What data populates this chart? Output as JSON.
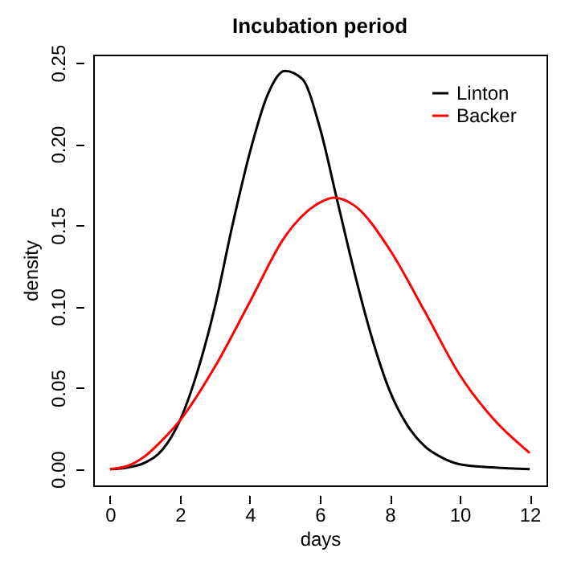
{
  "chart_data": {
    "type": "line",
    "title": "Incubation period",
    "xlabel": "days",
    "ylabel": "density",
    "xlim": [
      -0.48,
      12.48
    ],
    "ylim": [
      -0.01,
      0.255
    ],
    "xticks": [
      0,
      2,
      4,
      6,
      8,
      10,
      12
    ],
    "yticks": [
      {
        "value": 0,
        "label": "0.00"
      },
      0.05,
      {
        "value": 0.1,
        "label": "0.10"
      },
      0.15,
      {
        "value": 0.2,
        "label": "0.20"
      },
      0.25
    ],
    "grid": false,
    "legend": "top right",
    "line_style": "solid",
    "series": [
      {
        "name": "Linton",
        "color": "#000000",
        "x": [
          0,
          0.5,
          1,
          1.5,
          2,
          2.5,
          3,
          3.5,
          4,
          4.5,
          5,
          5.5,
          6,
          6.5,
          7,
          7.5,
          8,
          8.5,
          9,
          9.5,
          10,
          11,
          12
        ],
        "values": [
          0,
          0.001,
          0.004,
          0.012,
          0.03,
          0.06,
          0.1,
          0.15,
          0.195,
          0.23,
          0.245,
          0.24,
          0.21,
          0.165,
          0.12,
          0.08,
          0.048,
          0.027,
          0.014,
          0.007,
          0.003,
          0.001,
          0
        ]
      },
      {
        "name": "Backer",
        "color": "#ff0000",
        "x": [
          0,
          0.5,
          1,
          1.5,
          2,
          3,
          4,
          5,
          6,
          6.4,
          7,
          8,
          9,
          10,
          11,
          12
        ],
        "values": [
          0,
          0.002,
          0.008,
          0.018,
          0.03,
          0.063,
          0.103,
          0.143,
          0.164,
          0.167,
          0.162,
          0.135,
          0.097,
          0.058,
          0.03,
          0.01
        ]
      }
    ]
  }
}
